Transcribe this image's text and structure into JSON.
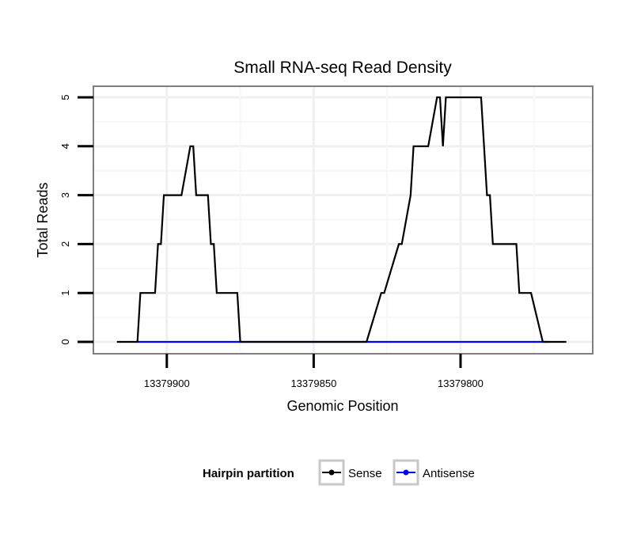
{
  "chart_data": {
    "type": "line",
    "title": "Small RNA-seq Read Density",
    "xlabel": "Genomic Position",
    "ylabel": "Total Reads",
    "x_reversed": true,
    "xlim": [
      13379925,
      13379755
    ],
    "ylim": [
      0,
      5
    ],
    "x_ticks": [
      13379900,
      13379850,
      13379800
    ],
    "x_tick_labels": [
      "13379900",
      "13379850",
      "13379800"
    ],
    "y_ticks": [
      0,
      1,
      2,
      3,
      4,
      5
    ],
    "y_tick_labels": [
      "0",
      "1",
      "2",
      "3",
      "4",
      "5"
    ],
    "grid": true,
    "legend": {
      "title": "Hairpin partition",
      "position": "bottom",
      "entries": [
        "Sense",
        "Antisense"
      ]
    },
    "series": [
      {
        "name": "Sense",
        "color": "#000000",
        "x": [
          13379917,
          13379910,
          13379909,
          13379904,
          13379903,
          13379902,
          13379901,
          13379900,
          13379899,
          13379898,
          13379895,
          13379892,
          13379891,
          13379890,
          13379889,
          13379886,
          13379885,
          13379884,
          13379883,
          13379876,
          13379875,
          13379868,
          13379855,
          13379845,
          13379833,
          13379832,
          13379827,
          13379826,
          13379821,
          13379820,
          13379817,
          13379816,
          13379811,
          13379808,
          13379807,
          13379806,
          13379805,
          13379804,
          13379803,
          13379800,
          13379799,
          13379797,
          13379793,
          13379792,
          13379791,
          13379790,
          13379789,
          13379787,
          13379781,
          13379780,
          13379779,
          13379776,
          13379772,
          13379770,
          13379769,
          13379767,
          13379767.5,
          13379764
        ],
        "y": [
          0,
          0,
          1,
          1,
          2,
          2,
          3,
          3,
          3,
          3,
          3,
          4,
          4,
          3,
          3,
          3,
          2,
          2,
          1,
          1,
          0,
          0,
          0,
          0,
          0,
          0,
          1,
          1,
          2,
          2,
          3,
          4,
          4,
          5,
          5,
          4,
          5,
          5,
          5,
          5,
          5,
          5,
          5,
          4,
          3,
          3,
          2,
          2,
          2,
          1,
          1,
          1,
          0,
          0,
          0,
          0,
          0,
          0
        ]
      },
      {
        "name": "Antisense",
        "color": "#0000ff",
        "x": [
          13379910,
          13379868,
          13379828,
          13379770
        ],
        "y": [
          0,
          0,
          0,
          0
        ]
      }
    ]
  }
}
